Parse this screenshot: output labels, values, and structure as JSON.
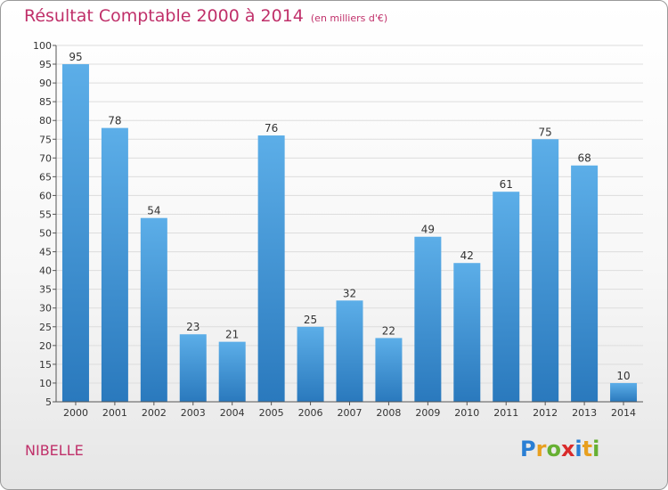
{
  "title": "Résultat Comptable 2000 à 2014",
  "unit": "(en milliers d'€)",
  "commune": "NIBELLE",
  "logo": {
    "text": "Proxiti",
    "colors": [
      "#2a7fd4",
      "#e8a020",
      "#66b032",
      "#d92b2b",
      "#2a7fd4",
      "#e8a020",
      "#66b032"
    ]
  },
  "colors": {
    "bar_top": "#5caee8",
    "bar_bottom": "#2a79bd",
    "title": "#c0306a"
  },
  "chart_data": {
    "type": "bar",
    "categories": [
      "2000",
      "2001",
      "2002",
      "2003",
      "2004",
      "2005",
      "2006",
      "2007",
      "2008",
      "2009",
      "2010",
      "2011",
      "2012",
      "2013",
      "2014"
    ],
    "values": [
      95,
      78,
      54,
      23,
      21,
      76,
      25,
      32,
      22,
      49,
      42,
      61,
      75,
      68,
      10
    ],
    "ylim": [
      5,
      100
    ],
    "yticks": [
      5,
      10,
      15,
      20,
      25,
      30,
      35,
      40,
      45,
      50,
      55,
      60,
      65,
      70,
      75,
      80,
      85,
      90,
      95,
      100
    ],
    "grid": true,
    "data_labels": true
  }
}
